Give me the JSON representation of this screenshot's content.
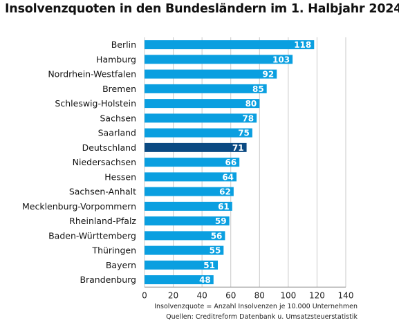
{
  "chart_data": {
    "type": "bar",
    "orientation": "horizontal",
    "title": "Insolvenzquoten in den Bundesländern im 1. Halbjahr 2024",
    "categories": [
      "Berlin",
      "Hamburg",
      "Nordrhein-Westfalen",
      "Bremen",
      "Schleswig-Holstein",
      "Sachsen",
      "Saarland",
      "Deutschland",
      "Niedersachsen",
      "Hessen",
      "Sachsen-Anhalt",
      "Mecklenburg-Vorpommern",
      "Rheinland-Pfalz",
      "Baden-Württemberg",
      "Thüringen",
      "Bayern",
      "Brandenburg"
    ],
    "values": [
      118,
      103,
      92,
      85,
      80,
      78,
      75,
      71,
      66,
      64,
      62,
      61,
      59,
      56,
      55,
      51,
      48
    ],
    "highlight": "Deutschland",
    "xlim": [
      0,
      140
    ],
    "xticks": [
      0,
      20,
      40,
      60,
      80,
      100,
      120,
      140
    ],
    "grid": true,
    "colors": {
      "bar": "#0a9fe0",
      "highlight": "#0b4a82",
      "label": "#ffffff",
      "grid": "#c8c8c8"
    }
  },
  "footnote": {
    "line1": "Insolvenzquote = Anzahl Insolvenzen je 10.000 Unternehmen",
    "line2": "Quellen: Creditreform Datenbank u. Umsatzsteuerstatistik"
  }
}
